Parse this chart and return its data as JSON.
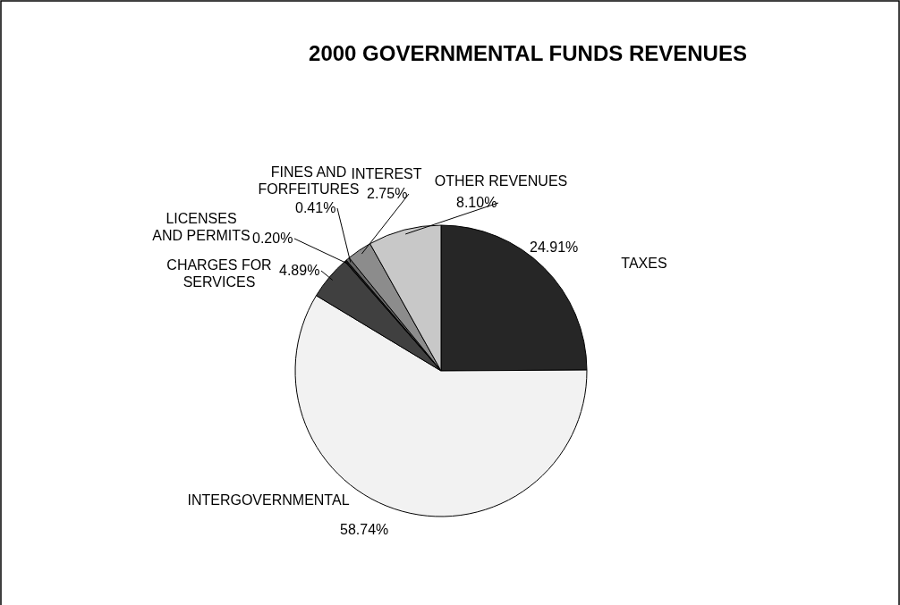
{
  "chart_data": {
    "type": "pie",
    "title": "2000 GOVERNMENTAL FUNDS REVENUES",
    "categories": [
      "TAXES",
      "INTERGOVERNMENTAL",
      "CHARGES FOR SERVICES",
      "LICENSES AND PERMITS",
      "FINES AND FORFEITURES",
      "INTEREST",
      "OTHER REVENUES"
    ],
    "values": [
      24.91,
      58.74,
      4.89,
      0.2,
      0.41,
      2.75,
      8.1
    ],
    "value_labels": [
      "24.91%",
      "58.74%",
      "4.89%",
      "0.20%",
      "0.41%",
      "2.75%",
      "8.10%"
    ],
    "colors": [
      "#262626",
      "#f2f2f2",
      "#404040",
      "#1a1a1a",
      "#666666",
      "#8c8c8c",
      "#c8c8c8"
    ],
    "legend": false
  }
}
